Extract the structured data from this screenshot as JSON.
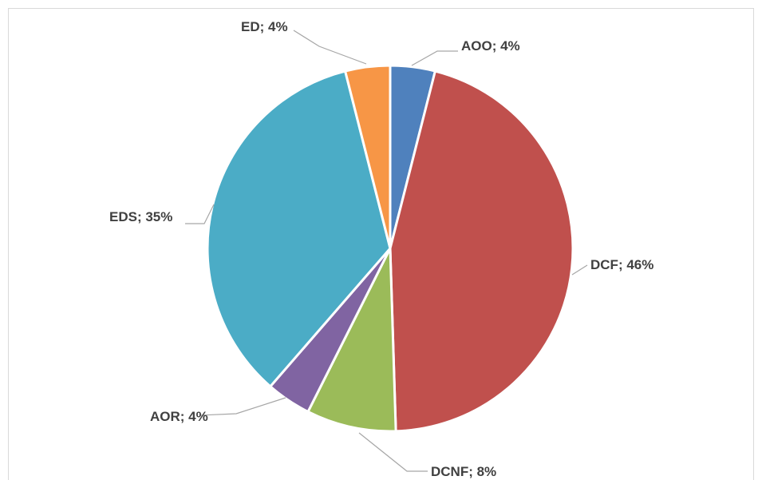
{
  "chart_data": {
    "type": "pie",
    "categories": [
      "AOO",
      "DCF",
      "DCNF",
      "AOR",
      "EDS",
      "ED"
    ],
    "values": [
      4,
      46,
      8,
      4,
      35,
      4
    ],
    "labels": [
      "AOO; 4%",
      "DCF; 46%",
      "DCNF; 8%",
      "AOR; 4%",
      "EDS; 35%",
      "ED; 4%"
    ],
    "colors": [
      "#4f81bd",
      "#c0504d",
      "#9bbb59",
      "#8064a2",
      "#4bacc6",
      "#f79646"
    ],
    "start_angle": "12 o'clock",
    "direction": "clockwise",
    "title": "",
    "legend": "none"
  }
}
